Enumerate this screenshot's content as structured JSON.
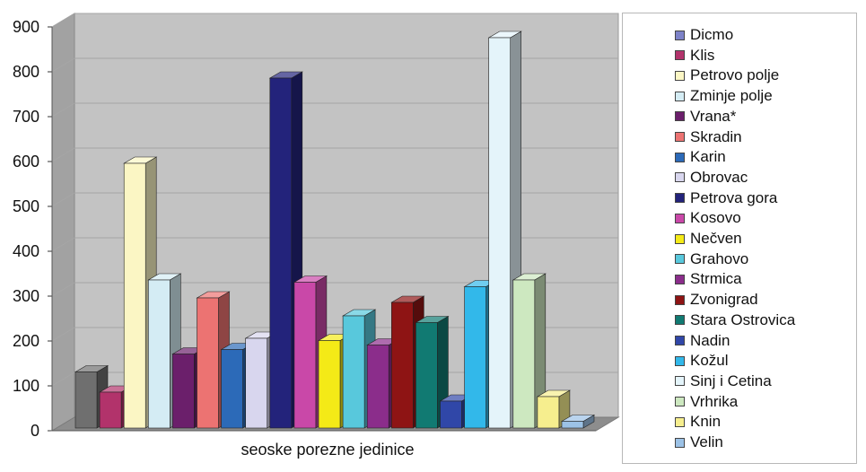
{
  "chart_data": {
    "type": "bar",
    "xlabel": "seoske porezne jedinice",
    "ylabel": "",
    "ylim": [
      0,
      900
    ],
    "yticks": [
      0,
      100,
      200,
      300,
      400,
      500,
      600,
      700,
      800,
      900
    ],
    "grid": true,
    "three_d": true,
    "legend_position": "right",
    "series": [
      {
        "name": "Dicmo",
        "value": 125,
        "color": "#7d82c8"
      },
      {
        "name": "Klis",
        "value": 80,
        "color": "#b2336b"
      },
      {
        "name": "Petrovo polje",
        "value": 590,
        "color": "#fbf6c4"
      },
      {
        "name": "Zminje polje",
        "value": 330,
        "color": "#d4ecf4"
      },
      {
        "name": "Vrana*",
        "value": 165,
        "color": "#6b1f6b"
      },
      {
        "name": "Skradin",
        "value": 290,
        "color": "#ec7372"
      },
      {
        "name": "Karin",
        "value": 175,
        "color": "#2c6ab8"
      },
      {
        "name": "Obrovac",
        "value": 200,
        "color": "#d8d6ee"
      },
      {
        "name": "Petrova gora",
        "value": 780,
        "color": "#23237b"
      },
      {
        "name": "Kosovo",
        "value": 325,
        "color": "#c948a8"
      },
      {
        "name": "Nečven",
        "value": 195,
        "color": "#f4ea17"
      },
      {
        "name": "Grahovo",
        "value": 250,
        "color": "#58c8dc"
      },
      {
        "name": "Strmica",
        "value": 185,
        "color": "#8b2d8b"
      },
      {
        "name": "Zvonigrad",
        "value": 280,
        "color": "#8e1414"
      },
      {
        "name": "Stara Ostrovica",
        "value": 235,
        "color": "#117a72"
      },
      {
        "name": "Nadin",
        "value": 60,
        "color": "#3047a8"
      },
      {
        "name": "Kožul",
        "value": 315,
        "color": "#32b8ea"
      },
      {
        "name": "Sinj i Cetina",
        "value": 870,
        "color": "#e4f4fa"
      },
      {
        "name": "Vrhrika",
        "value": 330,
        "color": "#cde8c0"
      },
      {
        "name": "Knin",
        "value": 70,
        "color": "#f6ee8e"
      },
      {
        "name": "Velin",
        "value": 15,
        "color": "#9cc2e6"
      }
    ]
  },
  "colors": {
    "plot_wall": "#c3c3c3",
    "plot_wall_side": "#a2a2a2",
    "floor": "#8d8d8d",
    "grid": "#a6a6a6",
    "first_bar_display": "#6f6f6f"
  }
}
